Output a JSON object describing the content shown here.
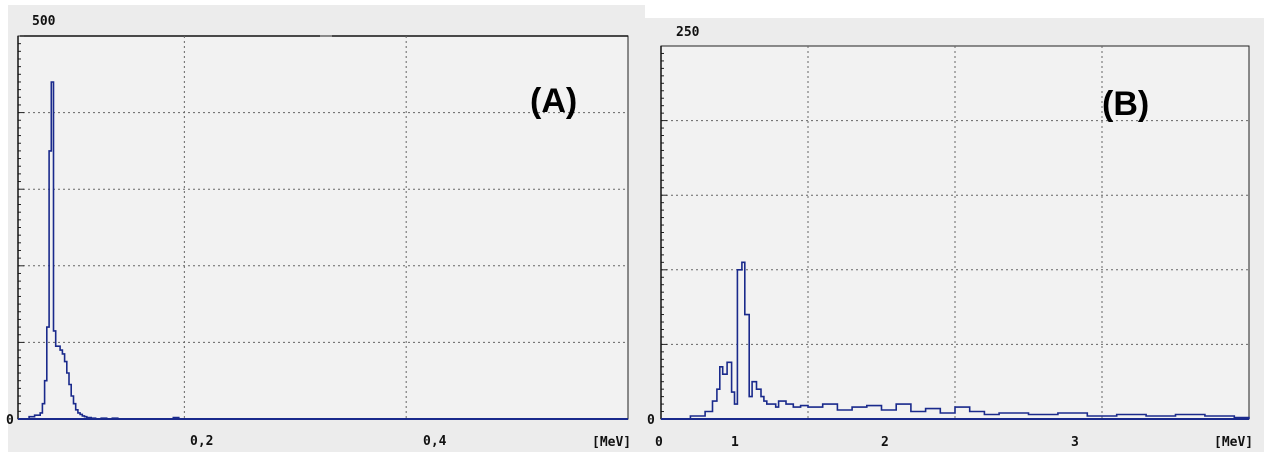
{
  "colors": {
    "background": "#ececec",
    "plot_area": "#f2f2f2",
    "trace": "#1a2a8c",
    "axis": "#222222",
    "grid": "#666666"
  },
  "chart_data": [
    {
      "type": "histogram-step",
      "panel_label": "(A)",
      "ymax_label": "500",
      "ylim": [
        0,
        500
      ],
      "xlim": [
        0.05,
        0.6
      ],
      "xunit": "[MeV]",
      "x_ticks": [
        {
          "value": 0.2,
          "label": "0,2"
        },
        {
          "value": 0.4,
          "label": "0,4"
        }
      ],
      "y_tick_zero": "0",
      "grid": true,
      "x": [
        0.05,
        0.06,
        0.065,
        0.07,
        0.072,
        0.074,
        0.076,
        0.078,
        0.08,
        0.082,
        0.084,
        0.086,
        0.088,
        0.09,
        0.092,
        0.094,
        0.096,
        0.098,
        0.1,
        0.102,
        0.104,
        0.106,
        0.108,
        0.11,
        0.112,
        0.114,
        0.116,
        0.118,
        0.12,
        0.122,
        0.125,
        0.13,
        0.135,
        0.14,
        0.19,
        0.195,
        0.6
      ],
      "y": [
        0,
        3,
        5,
        8,
        20,
        50,
        120,
        350,
        440,
        115,
        95,
        95,
        90,
        85,
        75,
        60,
        45,
        30,
        20,
        12,
        8,
        6,
        4,
        3,
        2,
        2,
        1,
        1,
        0,
        0,
        1,
        0,
        1,
        0,
        2,
        0,
        0
      ]
    },
    {
      "type": "histogram-step",
      "panel_label": "(B)",
      "ymax_label": "250",
      "ylim": [
        0,
        250
      ],
      "xlim": [
        0,
        4
      ],
      "xunit": "[MeV]",
      "x_ticks": [
        {
          "value": 0,
          "label": "0"
        },
        {
          "value": 1,
          "label": "1"
        },
        {
          "value": 2,
          "label": "2"
        },
        {
          "value": 3,
          "label": "3"
        }
      ],
      "y_tick_zero": "0",
      "grid": true,
      "x": [
        0,
        0.2,
        0.3,
        0.35,
        0.38,
        0.4,
        0.42,
        0.45,
        0.48,
        0.5,
        0.52,
        0.55,
        0.57,
        0.6,
        0.62,
        0.65,
        0.68,
        0.7,
        0.72,
        0.75,
        0.78,
        0.8,
        0.85,
        0.9,
        0.95,
        1.0,
        1.1,
        1.2,
        1.3,
        1.4,
        1.5,
        1.6,
        1.7,
        1.8,
        1.9,
        2.0,
        2.1,
        2.2,
        2.3,
        2.5,
        2.7,
        2.9,
        3.1,
        3.3,
        3.5,
        3.7,
        3.9,
        4.0
      ],
      "y": [
        0,
        2,
        5,
        12,
        20,
        35,
        30,
        38,
        18,
        10,
        100,
        105,
        70,
        15,
        25,
        20,
        15,
        12,
        10,
        10,
        8,
        12,
        10,
        8,
        9,
        8,
        10,
        6,
        8,
        9,
        6,
        10,
        5,
        7,
        4,
        8,
        5,
        3,
        4,
        3,
        4,
        2,
        3,
        2,
        3,
        2,
        1,
        0
      ]
    }
  ]
}
